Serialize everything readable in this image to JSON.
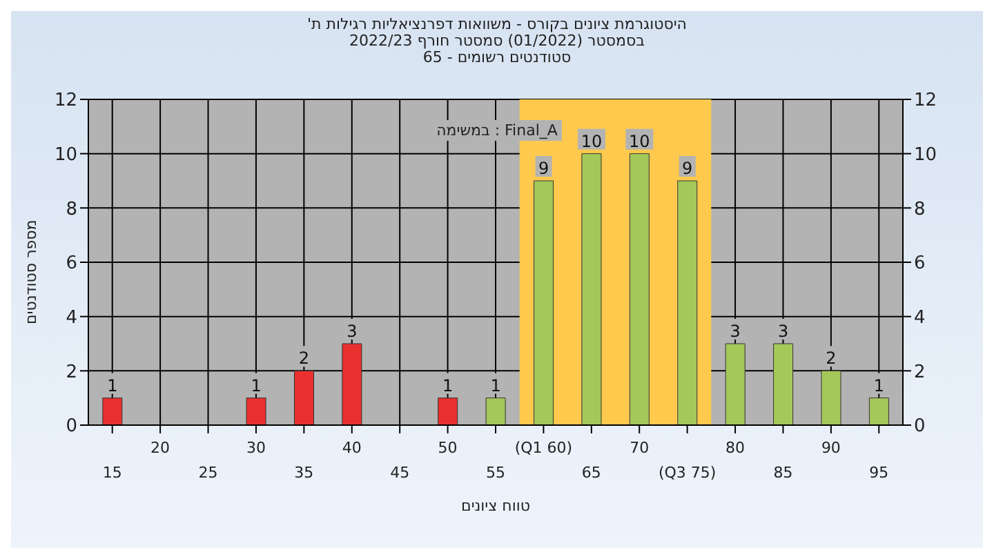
{
  "chart_data": {
    "type": "bar",
    "title": "היסטוגרמת ציונים בקורס - משוואות דפרנציאליות רגילות ת' בסמסטר (01/2022) סמסטר חורף 2022/23",
    "subtitle": "סטודנטים רשומים - 65",
    "xlabel": "טווח ציונים",
    "ylabel": "מספר סטודנטים",
    "annotations": [
      "במשימה : Final_A"
    ],
    "categories": [
      "15",
      "20",
      "25",
      "30",
      "35",
      "40",
      "45",
      "50",
      "55",
      "(Q1 60)",
      "65",
      "70",
      "(Q3 75)",
      "80",
      "85",
      "90",
      "95"
    ],
    "values": [
      1,
      null,
      null,
      1,
      2,
      3,
      null,
      1,
      1,
      9,
      10,
      10,
      9,
      3,
      3,
      2,
      1
    ],
    "colors": [
      "#e8302f",
      null,
      null,
      "#e8302f",
      "#e8302f",
      "#e8302f",
      null,
      "#e8302f",
      "#a5c85a",
      "#a5c85a",
      "#a5c85a",
      "#a5c85a",
      "#a5c85a",
      "#a5c85a",
      "#a5c85a",
      "#a5c85a",
      "#a5c85a"
    ],
    "bands": [
      {
        "axis": "x",
        "from": "(Q1 60)",
        "to": "(Q3 75)",
        "color": "#ffc94d"
      }
    ],
    "ylim": [
      0,
      12
    ],
    "yticks": [
      0,
      2,
      4,
      6,
      8,
      10,
      12
    ],
    "y2lim": [
      0,
      12
    ],
    "y2ticks": [
      0,
      2,
      4,
      6,
      8,
      10,
      12
    ],
    "data_labels": true,
    "grid": true
  }
}
